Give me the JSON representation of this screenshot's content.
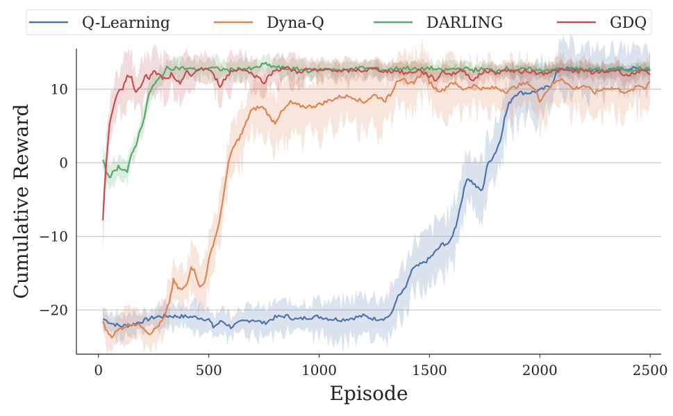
{
  "chart_data": {
    "type": "line",
    "title": "",
    "xlabel": "Episode",
    "ylabel": "Cumulative Reward",
    "xlim": [
      -100,
      2550
    ],
    "ylim": [
      -26,
      15.5
    ],
    "xticks": [
      0,
      500,
      1000,
      1500,
      2000,
      2500
    ],
    "xtick_labels": [
      "0",
      "500",
      "1000",
      "1500",
      "2000",
      "2500"
    ],
    "yticks": [
      -20,
      -10,
      0,
      10
    ],
    "ytick_labels": [
      "−20",
      "−10",
      "0",
      "10"
    ],
    "grid": "horizontal",
    "legend_position": "top",
    "shaded_band": "variation around each mean curve",
    "series": [
      {
        "name": "Q-Learning",
        "color": "#4c72b0",
        "points": [
          [
            20,
            -21.2
          ],
          [
            60,
            -21.8
          ],
          [
            100,
            -22.2
          ],
          [
            150,
            -22
          ],
          [
            200,
            -21.5
          ],
          [
            250,
            -21
          ],
          [
            300,
            -20.8
          ],
          [
            400,
            -20.9
          ],
          [
            450,
            -21
          ],
          [
            500,
            -21.3
          ],
          [
            520,
            -22.3
          ],
          [
            560,
            -21.5
          ],
          [
            600,
            -22.3
          ],
          [
            650,
            -21.6
          ],
          [
            700,
            -21.3
          ],
          [
            750,
            -21.8
          ],
          [
            800,
            -21
          ],
          [
            850,
            -20.8
          ],
          [
            900,
            -21.3
          ],
          [
            950,
            -21
          ],
          [
            1000,
            -20.9
          ],
          [
            1050,
            -21.2
          ],
          [
            1100,
            -21.3
          ],
          [
            1150,
            -21.1
          ],
          [
            1200,
            -20.8
          ],
          [
            1250,
            -21.2
          ],
          [
            1300,
            -21.1
          ],
          [
            1330,
            -20.5
          ],
          [
            1350,
            -18.5
          ],
          [
            1380,
            -17.5
          ],
          [
            1400,
            -16.5
          ],
          [
            1420,
            -14.5
          ],
          [
            1450,
            -14
          ],
          [
            1480,
            -13.5
          ],
          [
            1500,
            -13
          ],
          [
            1530,
            -12
          ],
          [
            1560,
            -11
          ],
          [
            1590,
            -11
          ],
          [
            1620,
            -8.5
          ],
          [
            1650,
            -4.5
          ],
          [
            1670,
            -2
          ],
          [
            1690,
            -2.5
          ],
          [
            1720,
            -3.5
          ],
          [
            1740,
            -3.8
          ],
          [
            1760,
            -0.5
          ],
          [
            1780,
            0.5
          ],
          [
            1800,
            1.5
          ],
          [
            1820,
            3
          ],
          [
            1840,
            6
          ],
          [
            1860,
            8
          ],
          [
            1880,
            9
          ],
          [
            1900,
            9.5
          ],
          [
            1950,
            9.5
          ],
          [
            2000,
            9.8
          ],
          [
            2050,
            10.5
          ],
          [
            2080,
            12.5
          ],
          [
            2100,
            12.8
          ],
          [
            2200,
            12.6
          ],
          [
            2300,
            12.5
          ],
          [
            2400,
            12.8
          ],
          [
            2500,
            12.7
          ]
        ],
        "band": [
          1.5,
          2,
          4,
          2.5
        ]
      },
      {
        "name": "Dyna-Q",
        "color": "#dd8452",
        "points": [
          [
            20,
            -21.5
          ],
          [
            40,
            -23
          ],
          [
            60,
            -23.5
          ],
          [
            100,
            -22.5
          ],
          [
            150,
            -21.8
          ],
          [
            200,
            -22.2
          ],
          [
            230,
            -23.2
          ],
          [
            260,
            -22.5
          ],
          [
            280,
            -21.8
          ],
          [
            300,
            -21
          ],
          [
            320,
            -19
          ],
          [
            340,
            -16
          ],
          [
            360,
            -17
          ],
          [
            380,
            -17.3
          ],
          [
            400,
            -16.5
          ],
          [
            420,
            -14
          ],
          [
            440,
            -15
          ],
          [
            460,
            -17
          ],
          [
            480,
            -16.3
          ],
          [
            500,
            -13.3
          ],
          [
            520,
            -11
          ],
          [
            540,
            -9
          ],
          [
            560,
            -6
          ],
          [
            575,
            -2.5
          ],
          [
            590,
            0
          ],
          [
            600,
            1
          ],
          [
            610,
            2
          ],
          [
            630,
            3
          ],
          [
            650,
            4
          ],
          [
            670,
            5.5
          ],
          [
            690,
            7
          ],
          [
            720,
            7.5
          ],
          [
            750,
            7.5
          ],
          [
            780,
            6
          ],
          [
            800,
            5.5
          ],
          [
            820,
            6.5
          ],
          [
            850,
            7.5
          ],
          [
            870,
            8.2
          ],
          [
            900,
            7.8
          ],
          [
            950,
            7.6
          ],
          [
            1000,
            7.9
          ],
          [
            1050,
            8.5
          ],
          [
            1100,
            9
          ],
          [
            1150,
            9
          ],
          [
            1200,
            8.2
          ],
          [
            1250,
            9.2
          ],
          [
            1300,
            8.5
          ],
          [
            1330,
            9.5
          ],
          [
            1350,
            11.2
          ],
          [
            1380,
            11.5
          ],
          [
            1400,
            10.5
          ],
          [
            1430,
            11
          ],
          [
            1460,
            12
          ],
          [
            1480,
            12.5
          ],
          [
            1500,
            11
          ],
          [
            1530,
            10
          ],
          [
            1560,
            9.8
          ],
          [
            1600,
            11
          ],
          [
            1650,
            10
          ],
          [
            1700,
            10.5
          ],
          [
            1750,
            10
          ],
          [
            1800,
            10.2
          ],
          [
            1850,
            9.7
          ],
          [
            1900,
            10.5
          ],
          [
            1950,
            10.8
          ],
          [
            1980,
            9.8
          ],
          [
            2000,
            8.5
          ],
          [
            2050,
            10.5
          ],
          [
            2100,
            11.5
          ],
          [
            2150,
            10
          ],
          [
            2200,
            10.5
          ],
          [
            2250,
            9.5
          ],
          [
            2300,
            10.2
          ],
          [
            2350,
            10
          ],
          [
            2400,
            9.5
          ],
          [
            2450,
            10.5
          ],
          [
            2480,
            10.2
          ],
          [
            2500,
            11.2
          ]
        ],
        "band": [
          1.8,
          4,
          3.5,
          3
        ]
      },
      {
        "name": "DARLING",
        "color": "#55a868",
        "points": [
          [
            20,
            0.4
          ],
          [
            35,
            -1.2
          ],
          [
            50,
            -1.8
          ],
          [
            70,
            -1.3
          ],
          [
            90,
            -0.5
          ],
          [
            110,
            -0.8
          ],
          [
            130,
            -1.2
          ],
          [
            150,
            1
          ],
          [
            170,
            2.5
          ],
          [
            190,
            4.5
          ],
          [
            210,
            6.5
          ],
          [
            230,
            9.5
          ],
          [
            250,
            10.5
          ],
          [
            270,
            11.2
          ],
          [
            290,
            12
          ],
          [
            310,
            12.8
          ],
          [
            350,
            12.9
          ],
          [
            400,
            12.8
          ],
          [
            450,
            12.6
          ],
          [
            500,
            12.9
          ],
          [
            550,
            12.7
          ],
          [
            600,
            12.6
          ],
          [
            650,
            12.8
          ],
          [
            700,
            12.7
          ],
          [
            750,
            13.4
          ],
          [
            800,
            13
          ],
          [
            850,
            12.8
          ],
          [
            900,
            12.7
          ],
          [
            950,
            12.5
          ],
          [
            1000,
            12.6
          ],
          [
            1050,
            12.8
          ],
          [
            1100,
            12.5
          ],
          [
            1150,
            12.7
          ],
          [
            1200,
            12.9
          ],
          [
            1250,
            12.7
          ],
          [
            1300,
            12.6
          ],
          [
            1350,
            12.8
          ],
          [
            1400,
            12.9
          ],
          [
            1450,
            12.6
          ],
          [
            1500,
            12.9
          ],
          [
            1550,
            12.5
          ],
          [
            1600,
            12.7
          ],
          [
            1650,
            12.8
          ],
          [
            1700,
            12.6
          ],
          [
            1750,
            12.7
          ],
          [
            1800,
            12.5
          ],
          [
            1850,
            12.8
          ],
          [
            1900,
            12.6
          ],
          [
            1950,
            12.7
          ],
          [
            2000,
            12.5
          ],
          [
            2050,
            12.7
          ],
          [
            2100,
            12.6
          ],
          [
            2150,
            12.8
          ],
          [
            2200,
            12.6
          ],
          [
            2250,
            12.7
          ],
          [
            2300,
            12.5
          ],
          [
            2350,
            12.8
          ],
          [
            2400,
            12.6
          ],
          [
            2450,
            12.8
          ],
          [
            2500,
            12.6
          ]
        ],
        "band": [
          1.5,
          1,
          0.8
        ]
      },
      {
        "name": "GDQ",
        "color": "#c44e52",
        "points": [
          [
            20,
            -7.8
          ],
          [
            35,
            0
          ],
          [
            50,
            5.5
          ],
          [
            70,
            8
          ],
          [
            90,
            9.5
          ],
          [
            110,
            10
          ],
          [
            130,
            12
          ],
          [
            150,
            11.5
          ],
          [
            170,
            9.5
          ],
          [
            190,
            10.5
          ],
          [
            210,
            11.8
          ],
          [
            230,
            11.5
          ],
          [
            250,
            12.3
          ],
          [
            270,
            12
          ],
          [
            290,
            11.5
          ],
          [
            310,
            11.3
          ],
          [
            330,
            12
          ],
          [
            350,
            11
          ],
          [
            370,
            10.8
          ],
          [
            400,
            12.6
          ],
          [
            420,
            11.5
          ],
          [
            450,
            12.8
          ],
          [
            500,
            12.7
          ],
          [
            530,
            11.5
          ],
          [
            550,
            10.5
          ],
          [
            600,
            12.4
          ],
          [
            650,
            12.8
          ],
          [
            700,
            12
          ],
          [
            750,
            11
          ],
          [
            800,
            12.6
          ],
          [
            850,
            12.9
          ],
          [
            900,
            12.3
          ],
          [
            950,
            12.7
          ],
          [
            1000,
            12.4
          ],
          [
            1050,
            12.8
          ],
          [
            1100,
            12.3
          ],
          [
            1150,
            12.6
          ],
          [
            1200,
            12.5
          ],
          [
            1250,
            12.8
          ],
          [
            1300,
            12.4
          ],
          [
            1350,
            12.5
          ],
          [
            1400,
            12.1
          ],
          [
            1450,
            12.6
          ],
          [
            1500,
            11.8
          ],
          [
            1530,
            11.2
          ],
          [
            1560,
            12.4
          ],
          [
            1600,
            12
          ],
          [
            1650,
            12.6
          ],
          [
            1700,
            11.2
          ],
          [
            1750,
            12.5
          ],
          [
            1800,
            12.2
          ],
          [
            1850,
            12.6
          ],
          [
            1900,
            12.3
          ],
          [
            1950,
            12.5
          ],
          [
            2000,
            12.1
          ],
          [
            2050,
            12.4
          ],
          [
            2100,
            12.6
          ],
          [
            2150,
            12.4
          ],
          [
            2200,
            12.5
          ],
          [
            2250,
            12.2
          ],
          [
            2300,
            12.4
          ],
          [
            2350,
            12.6
          ],
          [
            2400,
            11.8
          ],
          [
            2450,
            12.5
          ],
          [
            2500,
            12
          ]
        ],
        "band": [
          3,
          1.2,
          1
        ]
      }
    ]
  }
}
